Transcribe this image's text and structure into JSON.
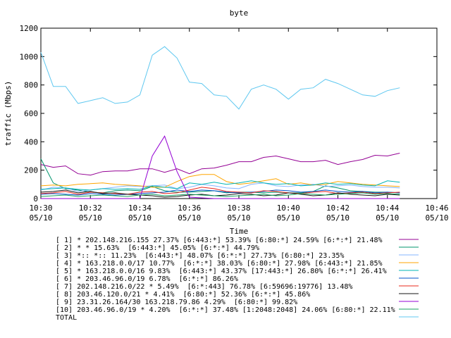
{
  "chart_data": {
    "type": "line",
    "title": "byte",
    "xlabel": "Time",
    "ylabel": "traffic (Mbps)",
    "ylim": [
      0,
      1200
    ],
    "yticks": [
      0,
      200,
      400,
      600,
      800,
      1000,
      1200
    ],
    "xlim": [
      "10:30",
      "10:46"
    ],
    "xticks": [
      {
        "time": "10:30",
        "date": "05/10"
      },
      {
        "time": "10:32",
        "date": "05/10"
      },
      {
        "time": "10:34",
        "date": "05/10"
      },
      {
        "time": "10:36",
        "date": "05/10"
      },
      {
        "time": "10:38",
        "date": "05/10"
      },
      {
        "time": "10:40",
        "date": "05/10"
      },
      {
        "time": "10:42",
        "date": "05/10"
      },
      {
        "time": "10:44",
        "date": "05/10"
      },
      {
        "time": "10:46",
        "date": "05/10"
      }
    ],
    "x": [
      "10:30:00",
      "10:30:30",
      "10:31:00",
      "10:31:30",
      "10:32:00",
      "10:32:30",
      "10:33:00",
      "10:33:30",
      "10:34:00",
      "10:34:30",
      "10:35:00",
      "10:35:30",
      "10:36:00",
      "10:36:30",
      "10:37:00",
      "10:37:30",
      "10:38:00",
      "10:38:30",
      "10:39:00",
      "10:39:30",
      "10:40:00",
      "10:40:30",
      "10:41:00",
      "10:41:30",
      "10:42:00",
      "10:42:30",
      "10:43:00",
      "10:43:30",
      "10:44:00",
      "10:44:30"
    ],
    "grid": false,
    "legend_position": "bottom",
    "series": [
      {
        "name": "[ 1] * 202.148.216.155 27.37% [6:443:*] 53.39% [6:80:*] 24.59% [6:*:*] 21.48%",
        "color": "#940094",
        "values": [
          240,
          220,
          230,
          175,
          165,
          190,
          195,
          195,
          210,
          210,
          185,
          210,
          175,
          210,
          215,
          235,
          260,
          260,
          290,
          300,
          280,
          260,
          260,
          270,
          240,
          260,
          275,
          305,
          300,
          320
        ]
      },
      {
        "name": "[ 2] * * 15.63%  [6:443:*] 45.05% [6:*:*] 44.79%",
        "color": "#00946c",
        "values": [
          280,
          110,
          70,
          60,
          45,
          40,
          55,
          60,
          55,
          85,
          55,
          45,
          45,
          50,
          55,
          40,
          45,
          45,
          40,
          45,
          40,
          40,
          50,
          90,
          75,
          55,
          50,
          45,
          45,
          40
        ]
      },
      {
        "name": "[ 3] *:: *:: 11.23%  [6:443:*] 48.07% [6:*:*] 27.73% [6:80:*] 23.35%",
        "color": "#84b4ff",
        "values": [
          60,
          80,
          75,
          50,
          60,
          70,
          80,
          90,
          85,
          90,
          95,
          70,
          80,
          100,
          90,
          75,
          70,
          100,
          110,
          90,
          85,
          95,
          100,
          85,
          90,
          95,
          85,
          80,
          80,
          75
        ]
      },
      {
        "name": "[ 4] * 163.218.0.0/17 10.77%  [6:*:*] 38.03% [6:80:*] 27.98% [6:443:*] 21.85%",
        "color": "#ffa500",
        "values": [
          90,
          95,
          90,
          100,
          105,
          110,
          100,
          95,
          90,
          80,
          80,
          120,
          155,
          170,
          170,
          120,
          100,
          110,
          125,
          140,
          100,
          110,
          95,
          100,
          120,
          110,
          100,
          95,
          90,
          85
        ]
      },
      {
        "name": "[ 5] * 163.218.0.0/16 9.83%  [6:443:*] 43.37% [17:443:*] 26.80% [6:*:*] 26.41%",
        "color": "#00b4b4",
        "values": [
          65,
          70,
          75,
          65,
          60,
          70,
          65,
          70,
          65,
          90,
          80,
          70,
          110,
          100,
          115,
          100,
          110,
          125,
          110,
          100,
          105,
          90,
          95,
          110,
          100,
          105,
          95,
          90,
          125,
          115
        ]
      },
      {
        "name": "[ 6] * 203.46.96.0/19 6.78%  [6:*:*] 86.26%",
        "color": "#0050c8",
        "values": [
          30,
          35,
          30,
          25,
          35,
          30,
          25,
          30,
          35,
          40,
          45,
          60,
          50,
          60,
          55,
          45,
          40,
          45,
          50,
          60,
          55,
          45,
          50,
          60,
          50,
          45,
          50,
          40,
          45,
          40
        ]
      },
      {
        "name": "[ 7] 202.148.216.0/22 * 5.49%  [6:*:443] 76.78% [6:59696:19776] 13.48%",
        "color": "#e8281e",
        "values": [
          35,
          40,
          50,
          30,
          45,
          40,
          35,
          30,
          45,
          50,
          35,
          40,
          60,
          80,
          70,
          50,
          45,
          40,
          55,
          50,
          40,
          35,
          45,
          50,
          35,
          40,
          45,
          35,
          40,
          45
        ]
      },
      {
        "name": "[ 8] 203.46.120.0/21 * 4.41%  [6:80:*] 52.36% [6:*:*] 45.86%",
        "color": "#141414",
        "values": [
          45,
          50,
          60,
          40,
          50,
          35,
          40,
          30,
          25,
          20,
          10,
          15,
          25,
          30,
          20,
          25,
          35,
          30,
          20,
          25,
          40,
          30,
          20,
          25,
          40,
          30,
          25,
          20,
          30,
          25
        ]
      },
      {
        "name": "[ 9] 23.31.26.164/30 163.218.79.86 4.29%  [6:80:*] 99.82%",
        "color": "#9400d4",
        "values": [
          0,
          0,
          0,
          0,
          0,
          0,
          0,
          0,
          0,
          300,
          440,
          190,
          10,
          5,
          0,
          0,
          0,
          0,
          0,
          0,
          0,
          0,
          0,
          0,
          0,
          0,
          0,
          0,
          0,
          0
        ]
      },
      {
        "name": "[10] 203.46.96.0/19 * 4.20%  [6:*:*] 37.48% [1:2048:2048] 24.06% [6:80:*] 22.11%",
        "color": "#14a060",
        "values": [
          15,
          20,
          25,
          15,
          20,
          25,
          20,
          15,
          25,
          30,
          20,
          25,
          30,
          25,
          20,
          15,
          20,
          25,
          30,
          20,
          25,
          35,
          30,
          25,
          30,
          35,
          40,
          30,
          35,
          30
        ]
      },
      {
        "name": "TOTAL",
        "color": "#60c8f0",
        "values": [
          1030,
          790,
          790,
          670,
          690,
          710,
          670,
          680,
          730,
          1010,
          1070,
          990,
          820,
          810,
          730,
          720,
          630,
          770,
          800,
          770,
          700,
          770,
          780,
          840,
          810,
          770,
          730,
          720,
          760,
          780
        ]
      }
    ]
  }
}
